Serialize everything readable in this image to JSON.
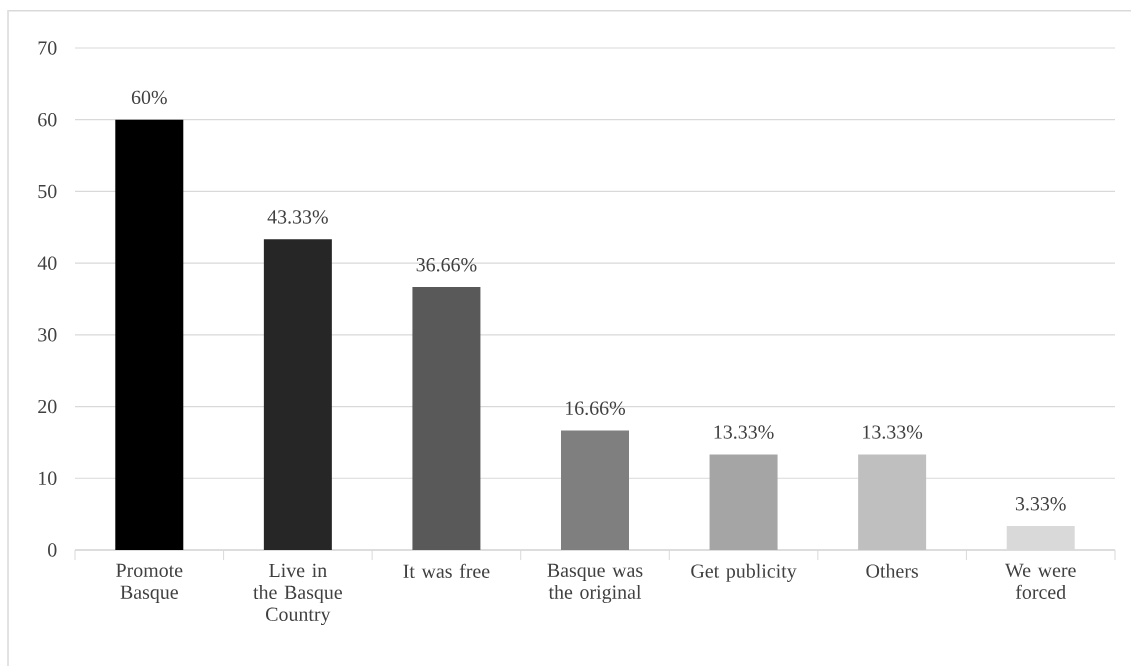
{
  "chart_data": {
    "type": "bar",
    "categories": [
      "Promote Basque",
      "Live in the Basque Country",
      "It was free",
      "Basque was the original",
      "Get publicity",
      "Others",
      "We were forced"
    ],
    "values": [
      60,
      43.33,
      36.66,
      16.66,
      13.33,
      13.33,
      3.33
    ],
    "colors": [
      "#000000",
      "#262626",
      "#595959",
      "#7f7f7f",
      "#a5a5a5",
      "#bfbfbf",
      "#d9d9d9"
    ],
    "value_labels": [
      "60%",
      "43.33%",
      "36.66%",
      "16.66%",
      "13.33%",
      "13.33%",
      "3.33%"
    ],
    "ylim": [
      0,
      70
    ],
    "yticks": [
      0,
      10,
      20,
      30,
      40,
      50,
      60,
      70
    ],
    "grid": "y"
  }
}
